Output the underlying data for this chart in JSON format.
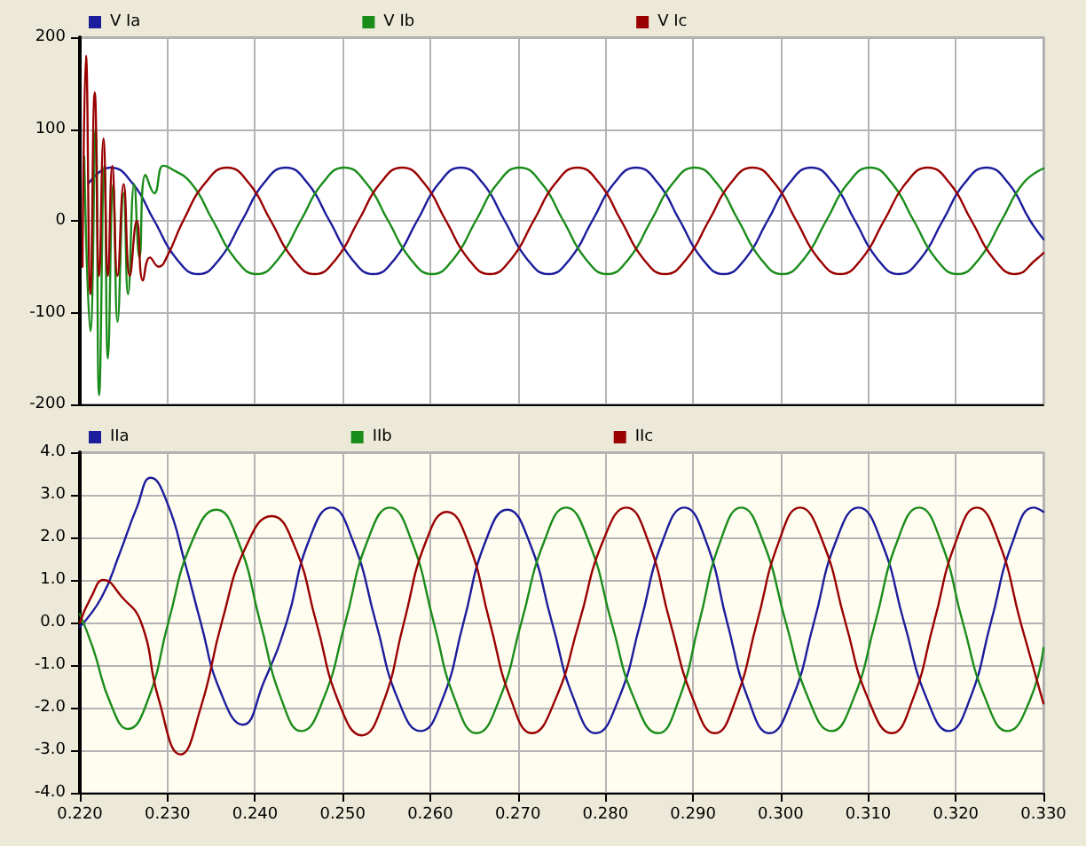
{
  "chart_data": [
    {
      "type": "line",
      "legend": "top",
      "grid": true,
      "marker": "none",
      "line_style": "solid",
      "tick_labels": "y",
      "xlim": [
        0.22,
        0.33
      ],
      "xticks": [
        0.22,
        0.23,
        0.24,
        0.25,
        0.26,
        0.27,
        0.28,
        0.29,
        0.3,
        0.31,
        0.32,
        0.33
      ],
      "ylim": [
        -200,
        200
      ],
      "yticks": [
        -200,
        -100,
        0,
        100,
        200
      ],
      "series": [
        {
          "name": "V Ia",
          "color": "#1c1c9c",
          "x": [
            0.221,
            0.2235,
            0.226,
            0.2285,
            0.231,
            0.2335,
            0.236,
            0.2385,
            0.241,
            0.2435,
            0.246,
            0.2485,
            0.251,
            0.2535,
            0.256,
            0.2585,
            0.261,
            0.2635,
            0.266,
            0.2685,
            0.271,
            0.2735,
            0.276,
            0.2785,
            0.281,
            0.2835,
            0.286,
            0.2885,
            0.291,
            0.2935,
            0.296,
            0.2985,
            0.301,
            0.3035,
            0.306,
            0.3085,
            0.311,
            0.3135,
            0.316,
            0.3185,
            0.321,
            0.3235,
            0.326,
            0.3285,
            0.33
          ],
          "values": [
            41,
            58,
            41,
            0,
            -41,
            -58,
            -41,
            0,
            41,
            58,
            41,
            0,
            -41,
            -58,
            -41,
            0,
            41,
            58,
            41,
            0,
            -41,
            -58,
            -41,
            0,
            41,
            58,
            41,
            0,
            -41,
            -58,
            -41,
            0,
            41,
            58,
            41,
            0,
            -41,
            -58,
            -41,
            0,
            41,
            58,
            41,
            0,
            -20
          ]
        },
        {
          "name": "V Ib",
          "color": "#1a8c1a",
          "x": [
            0.2205,
            0.2212,
            0.2218,
            0.2222,
            0.2228,
            0.2232,
            0.2238,
            0.2243,
            0.225,
            0.2255,
            0.2262,
            0.2268,
            0.2275,
            0.2285,
            0.2295,
            0.2302,
            0.2327,
            0.2352,
            0.2377,
            0.2402,
            0.2427,
            0.2452,
            0.2477,
            0.2502,
            0.2527,
            0.2552,
            0.2577,
            0.2602,
            0.2627,
            0.2652,
            0.2677,
            0.2702,
            0.2727,
            0.2752,
            0.2777,
            0.2802,
            0.2827,
            0.2852,
            0.2877,
            0.2902,
            0.2927,
            0.2952,
            0.2977,
            0.3002,
            0.3027,
            0.3052,
            0.3077,
            0.3102,
            0.3127,
            0.3152,
            0.3177,
            0.3202,
            0.3227,
            0.3252,
            0.3277,
            0.33
          ],
          "values": [
            70,
            -120,
            100,
            -190,
            60,
            -150,
            40,
            -110,
            30,
            -80,
            40,
            -40,
            50,
            30,
            60,
            58,
            41,
            0,
            -41,
            -58,
            -41,
            0,
            41,
            58,
            41,
            0,
            -41,
            -58,
            -41,
            0,
            41,
            58,
            41,
            0,
            -41,
            -58,
            -41,
            0,
            41,
            58,
            41,
            0,
            -41,
            -58,
            -41,
            0,
            41,
            58,
            41,
            0,
            -41,
            -58,
            -41,
            0,
            41,
            57
          ]
        },
        {
          "name": "V Ic",
          "color": "#990000",
          "x": [
            0.2203,
            0.2207,
            0.2212,
            0.2217,
            0.2222,
            0.2227,
            0.2232,
            0.2237,
            0.2243,
            0.225,
            0.2257,
            0.2265,
            0.2272,
            0.228,
            0.229,
            0.23,
            0.2318,
            0.2343,
            0.2368,
            0.2393,
            0.2418,
            0.2443,
            0.2468,
            0.2493,
            0.2518,
            0.2543,
            0.2568,
            0.2593,
            0.2618,
            0.2643,
            0.2668,
            0.2693,
            0.2718,
            0.2743,
            0.2768,
            0.2793,
            0.2818,
            0.2843,
            0.2868,
            0.2893,
            0.2918,
            0.2943,
            0.2968,
            0.2993,
            0.3018,
            0.3043,
            0.3068,
            0.3093,
            0.3118,
            0.3143,
            0.3168,
            0.3193,
            0.3218,
            0.3243,
            0.3268,
            0.3293,
            0.33
          ],
          "values": [
            -50,
            180,
            -80,
            140,
            -60,
            90,
            -60,
            60,
            -60,
            40,
            -60,
            0,
            -65,
            -40,
            -50,
            -38,
            0,
            41,
            58,
            41,
            0,
            -41,
            -58,
            -41,
            0,
            41,
            58,
            41,
            0,
            -41,
            -58,
            -41,
            0,
            41,
            58,
            41,
            0,
            -41,
            -58,
            -41,
            0,
            41,
            58,
            41,
            0,
            -41,
            -58,
            -41,
            0,
            41,
            58,
            41,
            0,
            -41,
            -58,
            -41,
            -35
          ]
        }
      ]
    },
    {
      "type": "line",
      "legend": "top",
      "grid": true,
      "marker": "none",
      "line_style": "solid",
      "xlim": [
        0.22,
        0.33
      ],
      "xticks": [
        {
          "value": 0.22,
          "label": "0.220"
        },
        {
          "value": 0.23,
          "label": "0.230"
        },
        {
          "value": 0.24,
          "label": "0.240"
        },
        {
          "value": 0.25,
          "label": "0.250"
        },
        {
          "value": 0.26,
          "label": "0.260"
        },
        {
          "value": 0.27,
          "label": "0.270"
        },
        {
          "value": 0.28,
          "label": "0.280"
        },
        {
          "value": 0.29,
          "label": "0.290"
        },
        {
          "value": 0.3,
          "label": "0.300"
        },
        {
          "value": 0.31,
          "label": "0.310"
        },
        {
          "value": 0.32,
          "label": "0.320"
        },
        {
          "value": 0.33,
          "label": "0.330"
        }
      ],
      "ylim": [
        -4,
        4
      ],
      "yticks": [
        {
          "value": -4,
          "label": "-4.0"
        },
        {
          "value": -3,
          "label": "-3.0"
        },
        {
          "value": -2,
          "label": "-2.0"
        },
        {
          "value": -1,
          "label": "-1.0"
        },
        {
          "value": 0,
          "label": "0.0"
        },
        {
          "value": 1,
          "label": "1.0"
        },
        {
          "value": 2,
          "label": "2.0"
        },
        {
          "value": 3,
          "label": "3.0"
        },
        {
          "value": 4,
          "label": "4.0"
        }
      ],
      "series": [
        {
          "name": "IIa",
          "color": "#1c1c9c",
          "x": [
            0.22,
            0.2225,
            0.2245,
            0.2265,
            0.2281,
            0.23,
            0.232,
            0.2338,
            0.236,
            0.2386,
            0.241,
            0.2436,
            0.2461,
            0.2487,
            0.2512,
            0.2538,
            0.2563,
            0.2589,
            0.2614,
            0.2638,
            0.2663,
            0.2688,
            0.2713,
            0.2739,
            0.2764,
            0.2789,
            0.2815,
            0.284,
            0.2865,
            0.289,
            0.2915,
            0.2939,
            0.2963,
            0.2987,
            0.3013,
            0.3038,
            0.3063,
            0.3089,
            0.3115,
            0.3141,
            0.3167,
            0.3192,
            0.3216,
            0.324,
            0.3265,
            0.3289,
            0.33
          ],
          "values": [
            -0.1,
            0.6,
            1.6,
            2.7,
            3.4,
            2.8,
            1.4,
            0.0,
            -1.6,
            -2.4,
            -1.4,
            0.0,
            1.9,
            2.7,
            1.9,
            0.0,
            -1.8,
            -2.55,
            -1.8,
            0.0,
            1.9,
            2.65,
            1.9,
            0.0,
            -1.8,
            -2.6,
            -1.8,
            0.0,
            1.9,
            2.7,
            1.9,
            0.0,
            -1.8,
            -2.6,
            -1.8,
            0.0,
            1.9,
            2.7,
            1.9,
            0.0,
            -1.8,
            -2.55,
            -1.8,
            0.0,
            1.9,
            2.7,
            2.6
          ]
        },
        {
          "name": "IIb",
          "color": "#1a8c1a",
          "x": [
            0.22,
            0.2215,
            0.2235,
            0.2255,
            0.2278,
            0.2301,
            0.2328,
            0.2356,
            0.2381,
            0.2406,
            0.243,
            0.2453,
            0.2478,
            0.2503,
            0.2528,
            0.2554,
            0.2579,
            0.2604,
            0.2628,
            0.2653,
            0.2679,
            0.2704,
            0.273,
            0.2755,
            0.2781,
            0.2807,
            0.2833,
            0.286,
            0.2884,
            0.2907,
            0.2931,
            0.2955,
            0.298,
            0.3006,
            0.3032,
            0.3058,
            0.3083,
            0.3108,
            0.3133,
            0.3158,
            0.3183,
            0.3208,
            0.3234,
            0.3259,
            0.3285,
            0.33
          ],
          "values": [
            0.2,
            -0.6,
            -1.9,
            -2.5,
            -1.8,
            0.0,
            1.9,
            2.65,
            1.9,
            0.0,
            -1.8,
            -2.55,
            -1.8,
            0.0,
            1.9,
            2.7,
            1.9,
            0.0,
            -1.8,
            -2.6,
            -1.8,
            0.0,
            1.9,
            2.7,
            1.9,
            0.0,
            -1.8,
            -2.6,
            -1.8,
            0.0,
            1.9,
            2.7,
            1.9,
            0.0,
            -1.8,
            -2.55,
            -1.8,
            0.0,
            1.9,
            2.7,
            1.9,
            0.0,
            -1.8,
            -2.55,
            -1.8,
            -0.6
          ]
        },
        {
          "name": "IIc",
          "color": "#990000",
          "x": [
            0.22,
            0.2213,
            0.2227,
            0.2248,
            0.227,
            0.229,
            0.2315,
            0.2338,
            0.2362,
            0.239,
            0.2419,
            0.2445,
            0.247,
            0.2496,
            0.2522,
            0.2546,
            0.257,
            0.2595,
            0.2619,
            0.2643,
            0.2668,
            0.2692,
            0.2716,
            0.2743,
            0.277,
            0.2797,
            0.2824,
            0.2849,
            0.2874,
            0.29,
            0.2925,
            0.2949,
            0.2973,
            0.2998,
            0.3022,
            0.3048,
            0.3074,
            0.31,
            0.3127,
            0.3151,
            0.3175,
            0.32,
            0.3224,
            0.3249,
            0.3274,
            0.33
          ],
          "values": [
            0.0,
            0.6,
            1.0,
            0.6,
            0.0,
            -1.8,
            -3.1,
            -2.0,
            0.0,
            1.8,
            2.5,
            1.8,
            0.0,
            -1.9,
            -2.65,
            -1.9,
            0.0,
            1.9,
            2.6,
            1.9,
            0.0,
            -1.8,
            -2.6,
            -1.8,
            0.0,
            1.9,
            2.7,
            1.9,
            0.0,
            -1.8,
            -2.6,
            -1.8,
            0.0,
            1.9,
            2.7,
            1.9,
            0.0,
            -1.8,
            -2.6,
            -1.8,
            0.0,
            1.9,
            2.7,
            1.9,
            0.0,
            -1.9
          ]
        }
      ]
    }
  ]
}
